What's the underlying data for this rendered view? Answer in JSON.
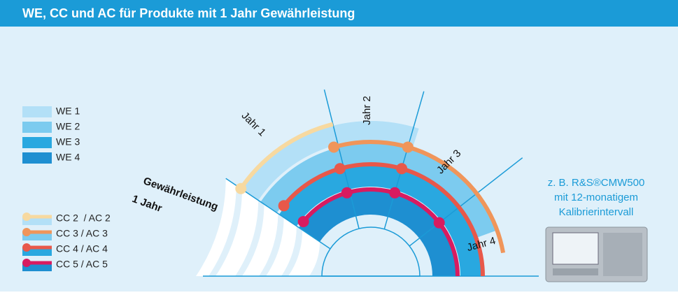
{
  "header": {
    "title": "WE, CC und AC für Produkte mit 1 Jahr Gewährleistung"
  },
  "legend": {
    "we": [
      "WE 1",
      "WE 2",
      "WE 3",
      "WE 4"
    ],
    "cc": [
      "CC 2  / AC 2",
      "CC 3 / AC 3",
      "CC 4 / AC 4",
      "CC 5 / AC 5"
    ]
  },
  "diagram": {
    "years": [
      "Jahr 1",
      "Jahr 2",
      "Jahr 3",
      "Jahr 4"
    ],
    "warranty": [
      "Gewährleistung",
      "1 Jahr"
    ]
  },
  "product": {
    "lines": [
      "z. B. R&S®CMW500",
      "mit 12-monatigem",
      "Kalibrierintervall"
    ]
  }
}
